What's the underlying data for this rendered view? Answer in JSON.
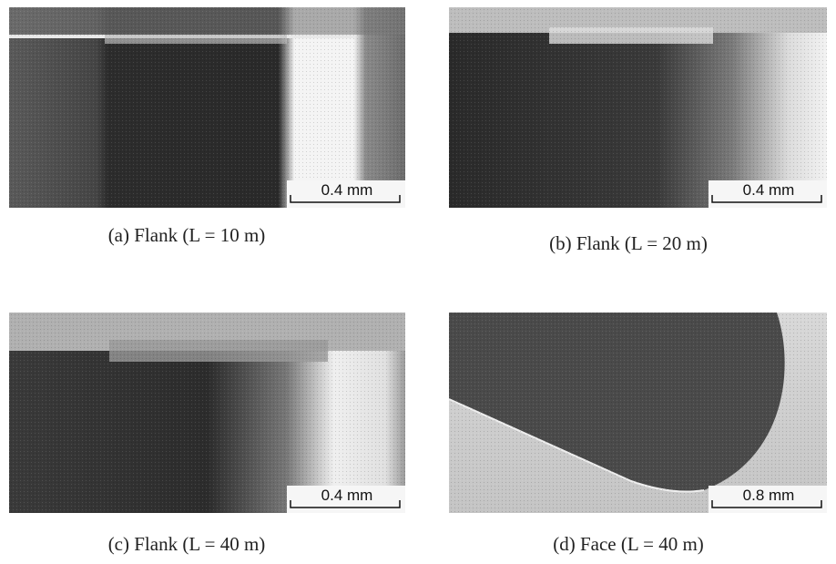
{
  "panels": [
    {
      "caption": "(a) Flank (L = 10 m)",
      "scale_label": "0.4 mm"
    },
    {
      "caption": "(b) Flank (L = 20 m)",
      "scale_label": "0.4 mm"
    },
    {
      "caption": "(c) Flank (L = 40 m)",
      "scale_label": "0.4 mm"
    },
    {
      "caption": "(d) Face (L = 40 m)",
      "scale_label": "0.8 mm"
    }
  ]
}
